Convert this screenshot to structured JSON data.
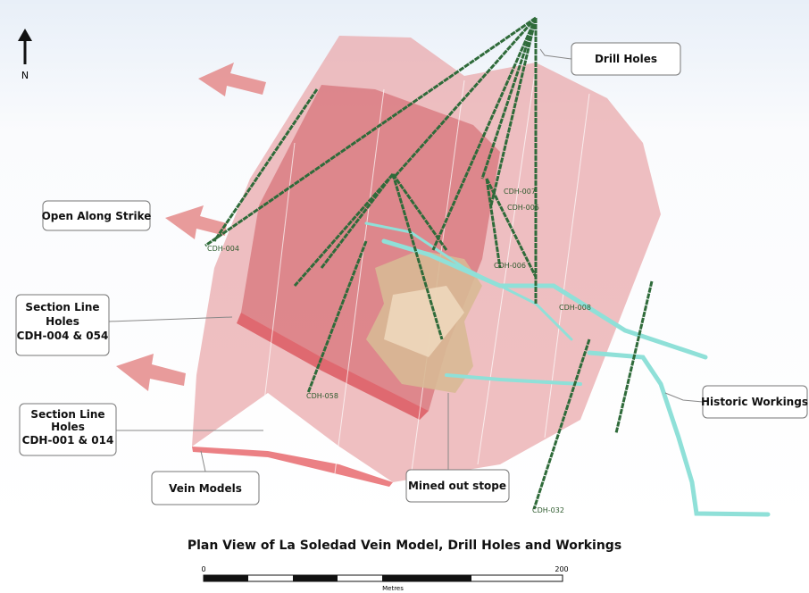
{
  "north": "N",
  "callouts": [
    {
      "lines": [
        "Drill Holes"
      ]
    },
    {
      "lines": [
        "Open Along Strike"
      ]
    },
    {
      "lines": [
        "Section Line",
        "Holes",
        "CDH-004 & 054"
      ]
    },
    {
      "lines": [
        "Section Line",
        "Holes",
        "CDH-001 & 014"
      ]
    },
    {
      "lines": [
        "Vein Models"
      ]
    },
    {
      "lines": [
        "Mined out stope"
      ]
    },
    {
      "lines": [
        "Historic Workings"
      ]
    }
  ],
  "holes": [
    {
      "label": "CDH-004"
    },
    {
      "label": "CDH-007"
    },
    {
      "label": "CDH-005"
    },
    {
      "label": "CDH-006"
    },
    {
      "label": "CDH-008"
    },
    {
      "label": "CDH-058"
    },
    {
      "label": "CDH-032"
    }
  ],
  "caption": "Plan View of La Soledad Vein Model, Drill Holes and Workings",
  "scale": {
    "start": "0",
    "end": "200",
    "unit": "Metres"
  }
}
